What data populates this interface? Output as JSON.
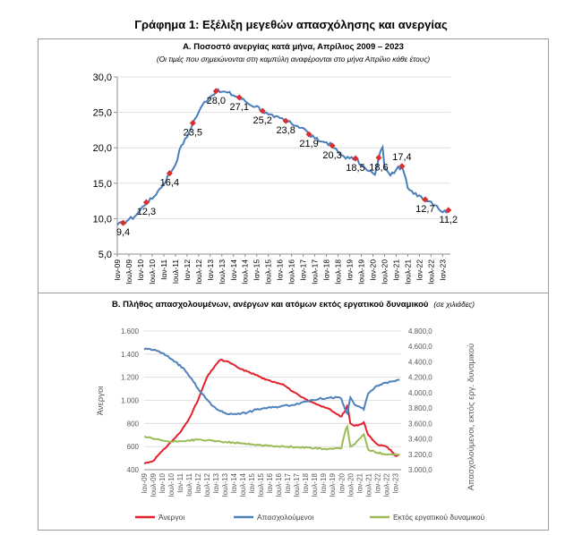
{
  "main_title": "Γράφημα 1: Εξέλιξη μεγεθών απασχόλησης και ανεργίας",
  "chart_data": [
    {
      "type": "line",
      "title": "Α. Ποσοστό ανεργίας κατά μήνα, Απρίλιος 2009 – 2023",
      "subtitle": "(Οι τιμές που σημειώνονται στη καμπύλη αναφέρονται στο μήνα Απρίλιο κάθε έτους)",
      "ylim": [
        5,
        30
      ],
      "y_ticks": [
        "5,0",
        "10,0",
        "15,0",
        "20,0",
        "25,0",
        "30,0"
      ],
      "x_tick_labels": [
        "Ιαν-09",
        "Ιουλ-09",
        "Ιαν-10",
        "Ιουλ-10",
        "Ιαν-11",
        "Ιουλ-11",
        "Ιαν-12",
        "Ιουλ-12",
        "Ιαν-13",
        "Ιουλ-13",
        "Ιαν-14",
        "Ιουλ-14",
        "Ιαν-15",
        "Ιουλ-15",
        "Ιαν-16",
        "Ιουλ-16",
        "Ιαν-17",
        "Ιουλ-17",
        "Ιαν-18",
        "Ιουλ-18",
        "Ιαν-19",
        "Ιουλ-19",
        "Ιαν-20",
        "Ιουλ-20",
        "Ιαν-21",
        "Ιουλ-21",
        "Ιαν-22",
        "Ιουλ-22",
        "Ιαν-23"
      ],
      "line_color": "#4a7ebb",
      "marker_color": "#d9302c",
      "series_anchors": [
        [
          "2009-01",
          9.1
        ],
        [
          "2009-04",
          9.4
        ],
        [
          "2009-07",
          9.9
        ],
        [
          "2009-10",
          10.3
        ],
        [
          "2010-01",
          11.3
        ],
        [
          "2010-04",
          12.3
        ],
        [
          "2010-07",
          12.8
        ],
        [
          "2010-10",
          13.9
        ],
        [
          "2011-01",
          14.9
        ],
        [
          "2011-04",
          16.4
        ],
        [
          "2011-07",
          17.6
        ],
        [
          "2011-10",
          20.3
        ],
        [
          "2012-01",
          21.5
        ],
        [
          "2012-04",
          23.5
        ],
        [
          "2012-07",
          25.0
        ],
        [
          "2012-10",
          26.5
        ],
        [
          "2013-01",
          27.2
        ],
        [
          "2013-04",
          28.0
        ],
        [
          "2013-07",
          27.9
        ],
        [
          "2013-10",
          27.8
        ],
        [
          "2014-01",
          27.4
        ],
        [
          "2014-04",
          27.1
        ],
        [
          "2014-07",
          26.6
        ],
        [
          "2014-10",
          26.0
        ],
        [
          "2015-01",
          25.9
        ],
        [
          "2015-04",
          25.2
        ],
        [
          "2015-07",
          24.7
        ],
        [
          "2015-10",
          24.3
        ],
        [
          "2016-01",
          24.2
        ],
        [
          "2016-04",
          23.8
        ],
        [
          "2016-07",
          23.4
        ],
        [
          "2016-10",
          23.1
        ],
        [
          "2017-01",
          22.8
        ],
        [
          "2017-04",
          21.9
        ],
        [
          "2017-07",
          21.3
        ],
        [
          "2017-10",
          20.9
        ],
        [
          "2018-01",
          20.8
        ],
        [
          "2018-04",
          20.3
        ],
        [
          "2018-07",
          19.4
        ],
        [
          "2018-10",
          18.8
        ],
        [
          "2019-01",
          18.5
        ],
        [
          "2019-04",
          18.5
        ],
        [
          "2019-07",
          17.6
        ],
        [
          "2019-10",
          16.8
        ],
        [
          "2020-01",
          16.4
        ],
        [
          "2020-02",
          16.2
        ],
        [
          "2020-04",
          18.6
        ],
        [
          "2020-05",
          19.6
        ],
        [
          "2020-06",
          20.1
        ],
        [
          "2020-07",
          17.2
        ],
        [
          "2020-08",
          16.9
        ],
        [
          "2020-09",
          16.5
        ],
        [
          "2020-10",
          16.1
        ],
        [
          "2021-01",
          16.9
        ],
        [
          "2021-04",
          17.4
        ],
        [
          "2021-05",
          16.5
        ],
        [
          "2021-07",
          14.3
        ],
        [
          "2021-10",
          13.5
        ],
        [
          "2022-01",
          13.3
        ],
        [
          "2022-04",
          12.7
        ],
        [
          "2022-07",
          12.4
        ],
        [
          "2022-10",
          11.8
        ],
        [
          "2023-01",
          10.9
        ],
        [
          "2023-04",
          11.2
        ]
      ],
      "april_labels": [
        {
          "date": "2009-04",
          "value": 9.4,
          "label": "9,4",
          "pos": "below"
        },
        {
          "date": "2010-04",
          "value": 12.3,
          "label": "12,3",
          "pos": "below"
        },
        {
          "date": "2011-04",
          "value": 16.4,
          "label": "16,4",
          "pos": "below"
        },
        {
          "date": "2012-04",
          "value": 23.5,
          "label": "23,5",
          "pos": "below"
        },
        {
          "date": "2013-04",
          "value": 28.0,
          "label": "28,0",
          "pos": "below"
        },
        {
          "date": "2014-04",
          "value": 27.1,
          "label": "27,1",
          "pos": "below"
        },
        {
          "date": "2015-04",
          "value": 25.2,
          "label": "25,2",
          "pos": "below"
        },
        {
          "date": "2016-04",
          "value": 23.8,
          "label": "23,8",
          "pos": "below"
        },
        {
          "date": "2017-04",
          "value": 21.9,
          "label": "21,9",
          "pos": "below"
        },
        {
          "date": "2018-04",
          "value": 20.3,
          "label": "20,3",
          "pos": "below"
        },
        {
          "date": "2019-04",
          "value": 18.5,
          "label": "18,5",
          "pos": "below"
        },
        {
          "date": "2020-04",
          "value": 18.6,
          "label": "18,6",
          "pos": "below"
        },
        {
          "date": "2021-04",
          "value": 17.4,
          "label": "17,4",
          "pos": "above"
        },
        {
          "date": "2022-04",
          "value": 12.7,
          "label": "12,7",
          "pos": "below"
        },
        {
          "date": "2023-04",
          "value": 11.2,
          "label": "11,2",
          "pos": "below"
        }
      ]
    },
    {
      "type": "line",
      "title": "Β. Πλήθος απασχολουμένων, ανέργων και ατόμων εκτός εργατικού δυναμικού",
      "subtitle": "(σε χιλιάδες)",
      "ylabel_left": "Άνεργοι",
      "ylabel_right": "Απασχολούμενοι, εκτός εργ. δυναμικού",
      "ylim_left": [
        400,
        1600
      ],
      "ylim_right": [
        3000,
        4800
      ],
      "y_ticks_left": [
        "400",
        "600",
        "800",
        "1.000",
        "1.200",
        "1.400",
        "1.600"
      ],
      "y_ticks_right": [
        "3.000,0",
        "3.200,0",
        "3.400,0",
        "3.600,0",
        "3.800,0",
        "4.000,0",
        "4.200,0",
        "4.400,0",
        "4.600,0",
        "4.800,0"
      ],
      "x_tick_labels": [
        "Ιαν-09",
        "Ιουλ-09",
        "Ιαν-10",
        "Ιουλ-10",
        "Ιαν-11",
        "Ιουλ-11",
        "Ιαν-12",
        "Ιουλ-12",
        "Ιαν-13",
        "Ιουλ-13",
        "Ιαν-14",
        "Ιουλ-14",
        "Ιαν-15",
        "Ιουλ-15",
        "Ιαν-16",
        "Ιουλ-16",
        "Ιαν-17",
        "Ιουλ-17",
        "Ιαν-18",
        "Ιουλ-18",
        "Ιαν-19",
        "Ιουλ-19",
        "Ιαν-20",
        "Ιουλ-20",
        "Ιαν-21",
        "Ιουλ-21",
        "Ιαν-22",
        "Ιουλ-22",
        "Ιαν-23"
      ],
      "legend_position": "bottom",
      "series": [
        {
          "name": "Άνεργοι",
          "axis": "left",
          "color": "#e3202a",
          "anchors": [
            [
              "2009-01",
              455
            ],
            [
              "2009-07",
              475
            ],
            [
              "2009-10",
              520
            ],
            [
              "2010-01",
              560
            ],
            [
              "2010-07",
              640
            ],
            [
              "2011-01",
              720
            ],
            [
              "2011-07",
              840
            ],
            [
              "2012-01",
              1000
            ],
            [
              "2012-07",
              1200
            ],
            [
              "2013-01",
              1310
            ],
            [
              "2013-04",
              1350
            ],
            [
              "2013-10",
              1330
            ],
            [
              "2014-04",
              1280
            ],
            [
              "2014-10",
              1250
            ],
            [
              "2015-04",
              1220
            ],
            [
              "2015-10",
              1180
            ],
            [
              "2016-04",
              1160
            ],
            [
              "2016-10",
              1140
            ],
            [
              "2017-04",
              1080
            ],
            [
              "2017-10",
              1030
            ],
            [
              "2018-04",
              990
            ],
            [
              "2018-10",
              960
            ],
            [
              "2019-04",
              930
            ],
            [
              "2019-10",
              880
            ],
            [
              "2020-01",
              860
            ],
            [
              "2020-04",
              920
            ],
            [
              "2020-05",
              960
            ],
            [
              "2020-07",
              800
            ],
            [
              "2020-10",
              780
            ],
            [
              "2021-01",
              790
            ],
            [
              "2021-04",
              810
            ],
            [
              "2021-07",
              700
            ],
            [
              "2022-01",
              620
            ],
            [
              "2022-07",
              600
            ],
            [
              "2022-10",
              570
            ],
            [
              "2023-01",
              520
            ],
            [
              "2023-04",
              530
            ]
          ]
        },
        {
          "name": "Απασχολούμενοι",
          "axis": "right",
          "color": "#4f81bd",
          "anchors": [
            [
              "2009-01",
              4560
            ],
            [
              "2009-04",
              4570
            ],
            [
              "2009-10",
              4540
            ],
            [
              "2010-04",
              4480
            ],
            [
              "2010-10",
              4400
            ],
            [
              "2011-04",
              4300
            ],
            [
              "2011-10",
              4140
            ],
            [
              "2012-04",
              3980
            ],
            [
              "2012-10",
              3840
            ],
            [
              "2013-04",
              3760
            ],
            [
              "2013-10",
              3720
            ],
            [
              "2014-04",
              3730
            ],
            [
              "2014-10",
              3740
            ],
            [
              "2015-04",
              3780
            ],
            [
              "2015-10",
              3800
            ],
            [
              "2016-04",
              3810
            ],
            [
              "2016-10",
              3830
            ],
            [
              "2017-04",
              3840
            ],
            [
              "2017-10",
              3870
            ],
            [
              "2018-04",
              3900
            ],
            [
              "2018-10",
              3920
            ],
            [
              "2019-04",
              3930
            ],
            [
              "2019-10",
              3940
            ],
            [
              "2020-01",
              3920
            ],
            [
              "2020-04",
              3750
            ],
            [
              "2020-05",
              3730
            ],
            [
              "2020-07",
              3940
            ],
            [
              "2020-10",
              3840
            ],
            [
              "2021-01",
              3820
            ],
            [
              "2021-04",
              3780
            ],
            [
              "2021-07",
              3990
            ],
            [
              "2022-01",
              4090
            ],
            [
              "2022-07",
              4130
            ],
            [
              "2023-01",
              4150
            ],
            [
              "2023-04",
              4170
            ]
          ]
        },
        {
          "name": "Εκτός εργατικού δυναμικού",
          "axis": "right",
          "color": "#9bbb59",
          "anchors": [
            [
              "2009-01",
              3430
            ],
            [
              "2009-07",
              3400
            ],
            [
              "2010-01",
              3380
            ],
            [
              "2010-07",
              3360
            ],
            [
              "2011-01",
              3370
            ],
            [
              "2011-07",
              3380
            ],
            [
              "2012-01",
              3390
            ],
            [
              "2012-07",
              3380
            ],
            [
              "2013-01",
              3370
            ],
            [
              "2013-07",
              3360
            ],
            [
              "2014-01",
              3350
            ],
            [
              "2014-07",
              3340
            ],
            [
              "2015-01",
              3330
            ],
            [
              "2015-07",
              3320
            ],
            [
              "2016-01",
              3310
            ],
            [
              "2016-07",
              3300
            ],
            [
              "2017-01",
              3300
            ],
            [
              "2017-07",
              3290
            ],
            [
              "2018-01",
              3290
            ],
            [
              "2018-07",
              3280
            ],
            [
              "2019-01",
              3270
            ],
            [
              "2019-07",
              3270
            ],
            [
              "2020-01",
              3280
            ],
            [
              "2020-04",
              3530
            ],
            [
              "2020-05",
              3560
            ],
            [
              "2020-07",
              3300
            ],
            [
              "2020-10",
              3330
            ],
            [
              "2021-01",
              3400
            ],
            [
              "2021-04",
              3460
            ],
            [
              "2021-07",
              3260
            ],
            [
              "2022-01",
              3220
            ],
            [
              "2022-07",
              3200
            ],
            [
              "2023-01",
              3200
            ],
            [
              "2023-04",
              3190
            ]
          ]
        }
      ]
    }
  ]
}
